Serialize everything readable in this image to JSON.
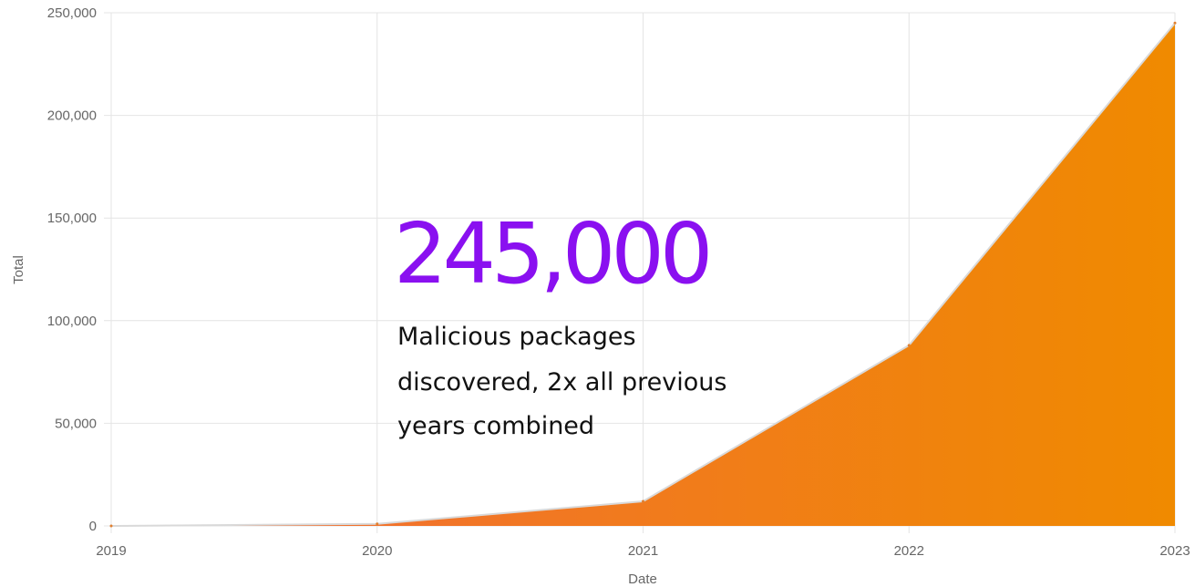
{
  "chart_data": {
    "type": "area",
    "x": [
      "2019",
      "2020",
      "2021",
      "2022",
      "2023"
    ],
    "series": [
      {
        "values": [
          0,
          1000,
          12000,
          88000,
          245000
        ]
      }
    ],
    "xlabel": "Date",
    "ylabel": "Total",
    "ylim": [
      0,
      250000
    ],
    "yticks": [
      "0",
      "50,000",
      "100,000",
      "150,000",
      "200,000",
      "250,000"
    ],
    "grid": true,
    "fill_gradient": [
      "#f26b3a",
      "#f08a00"
    ],
    "annotation": {
      "number": "245,000",
      "lines": [
        "Malicious packages",
        "discovered, 2x all previous",
        "years combined"
      ],
      "number_color": "#8a10f0"
    }
  }
}
